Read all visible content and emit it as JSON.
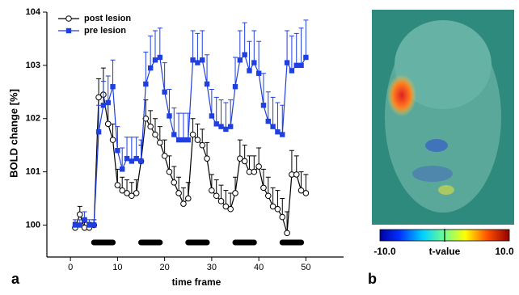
{
  "chart_data": {
    "type": "line",
    "x_label": "time frame",
    "y_label": "BOLD change [%]",
    "x": [
      1,
      2,
      3,
      4,
      5,
      6,
      7,
      8,
      9,
      10,
      11,
      12,
      13,
      14,
      15,
      16,
      17,
      18,
      19,
      20,
      21,
      22,
      23,
      24,
      25,
      26,
      27,
      28,
      29,
      30,
      31,
      32,
      33,
      34,
      35,
      36,
      37,
      38,
      39,
      40,
      41,
      42,
      43,
      44,
      45,
      46,
      47,
      48,
      49,
      50
    ],
    "series": [
      {
        "name": "post lesion",
        "color": "#000000",
        "marker": "circle",
        "values": [
          99.95,
          100.2,
          99.95,
          99.95,
          100.0,
          102.4,
          102.45,
          101.9,
          101.6,
          100.75,
          100.65,
          100.6,
          100.55,
          100.6,
          101.2,
          102.0,
          101.85,
          101.7,
          101.55,
          101.3,
          101.0,
          100.8,
          100.6,
          100.4,
          100.5,
          101.7,
          101.6,
          101.5,
          101.25,
          100.65,
          100.55,
          100.45,
          100.35,
          100.3,
          100.6,
          101.25,
          101.2,
          101.0,
          101.0,
          101.1,
          100.7,
          100.55,
          100.35,
          100.3,
          100.15,
          99.85,
          100.95,
          100.95,
          100.65,
          100.6
        ],
        "errors": [
          0.1,
          0.15,
          0.1,
          0.1,
          0.1,
          0.35,
          0.5,
          0.4,
          0.3,
          0.3,
          0.25,
          0.25,
          0.25,
          0.25,
          0.3,
          0.35,
          0.3,
          0.3,
          0.3,
          0.3,
          0.3,
          0.3,
          0.3,
          0.3,
          0.3,
          0.3,
          0.3,
          0.3,
          0.3,
          0.3,
          0.3,
          0.3,
          0.3,
          0.3,
          0.3,
          0.35,
          0.3,
          0.3,
          0.3,
          0.35,
          0.35,
          0.35,
          0.35,
          0.35,
          0.35,
          0.4,
          0.45,
          0.35,
          0.35,
          0.35
        ]
      },
      {
        "name": "pre lesion",
        "color": "#1f3fe0",
        "marker": "square",
        "values": [
          100.0,
          100.0,
          100.1,
          100.0,
          100.0,
          101.75,
          102.25,
          102.3,
          102.6,
          101.4,
          101.05,
          101.25,
          101.2,
          101.25,
          101.2,
          102.65,
          102.95,
          103.1,
          103.15,
          102.5,
          102.05,
          101.7,
          101.6,
          101.6,
          101.6,
          103.1,
          103.05,
          103.1,
          102.65,
          102.05,
          101.9,
          101.85,
          101.8,
          101.85,
          102.6,
          103.1,
          103.2,
          102.9,
          103.05,
          102.85,
          102.25,
          101.95,
          101.85,
          101.75,
          101.7,
          103.05,
          102.9,
          103.0,
          103.0,
          103.15
        ],
        "errors": [
          0.1,
          0.1,
          0.15,
          0.1,
          0.1,
          0.5,
          0.45,
          0.5,
          0.5,
          0.45,
          0.4,
          0.4,
          0.45,
          0.4,
          0.4,
          0.6,
          0.6,
          0.55,
          0.55,
          0.55,
          0.5,
          0.5,
          0.5,
          0.5,
          0.5,
          0.55,
          0.55,
          0.55,
          0.55,
          0.5,
          0.5,
          0.5,
          0.5,
          0.5,
          0.55,
          0.55,
          0.6,
          0.55,
          0.6,
          0.6,
          0.6,
          0.55,
          0.55,
          0.55,
          0.55,
          0.6,
          0.65,
          0.6,
          0.7,
          0.7
        ]
      }
    ],
    "stimulus_blocks": [
      [
        5,
        9
      ],
      [
        15,
        19
      ],
      [
        25,
        29
      ],
      [
        35,
        39
      ],
      [
        45,
        49
      ]
    ],
    "xlim": [
      -5,
      58
    ],
    "ylim": [
      99.4,
      104
    ],
    "xticks": [
      0,
      10,
      20,
      30,
      40,
      50
    ],
    "yticks": [
      100,
      101,
      102,
      103,
      104
    ],
    "legend": "upper left",
    "panel_label": "a"
  },
  "image_panel": {
    "panel_label": "b",
    "colorbar": {
      "min_label": "-10.0",
      "label": "t-value",
      "max_label": "10.0"
    }
  }
}
